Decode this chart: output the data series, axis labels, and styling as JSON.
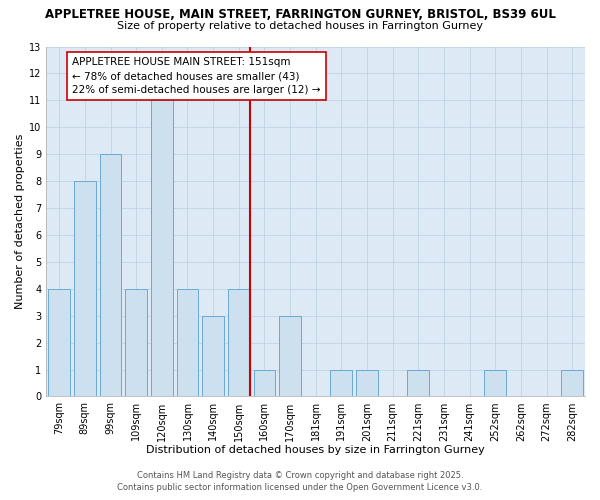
{
  "title_line1": "APPLETREE HOUSE, MAIN STREET, FARRINGTON GURNEY, BRISTOL, BS39 6UL",
  "title_line2": "Size of property relative to detached houses in Farrington Gurney",
  "xlabel": "Distribution of detached houses by size in Farrington Gurney",
  "ylabel": "Number of detached properties",
  "bar_labels": [
    "79sqm",
    "89sqm",
    "99sqm",
    "109sqm",
    "120sqm",
    "130sqm",
    "140sqm",
    "150sqm",
    "160sqm",
    "170sqm",
    "181sqm",
    "191sqm",
    "201sqm",
    "211sqm",
    "221sqm",
    "231sqm",
    "241sqm",
    "252sqm",
    "262sqm",
    "272sqm",
    "282sqm"
  ],
  "bar_heights": [
    4,
    8,
    9,
    4,
    11,
    4,
    3,
    4,
    1,
    3,
    0,
    1,
    1,
    0,
    1,
    0,
    0,
    1,
    0,
    0,
    1
  ],
  "bar_color": "#cde0ef",
  "bar_edge_color": "#6aaad4",
  "vline_color": "#cc0000",
  "ylim": [
    0,
    13
  ],
  "yticks": [
    0,
    1,
    2,
    3,
    4,
    5,
    6,
    7,
    8,
    9,
    10,
    11,
    12,
    13
  ],
  "annotation_title": "APPLETREE HOUSE MAIN STREET: 151sqm",
  "annotation_line2": "← 78% of detached houses are smaller (43)",
  "annotation_line3": "22% of semi-detached houses are larger (12) →",
  "footer_line1": "Contains HM Land Registry data © Crown copyright and database right 2025.",
  "footer_line2": "Contains public sector information licensed under the Open Government Licence v3.0.",
  "plot_bg_color": "#ddeaf5",
  "fig_bg_color": "#ffffff",
  "grid_color": "#b8cfe0",
  "title_fontsize": 8.5,
  "subtitle_fontsize": 8,
  "xlabel_fontsize": 8,
  "ylabel_fontsize": 8,
  "tick_fontsize": 7,
  "annotation_fontsize": 7.5,
  "footer_fontsize": 6
}
